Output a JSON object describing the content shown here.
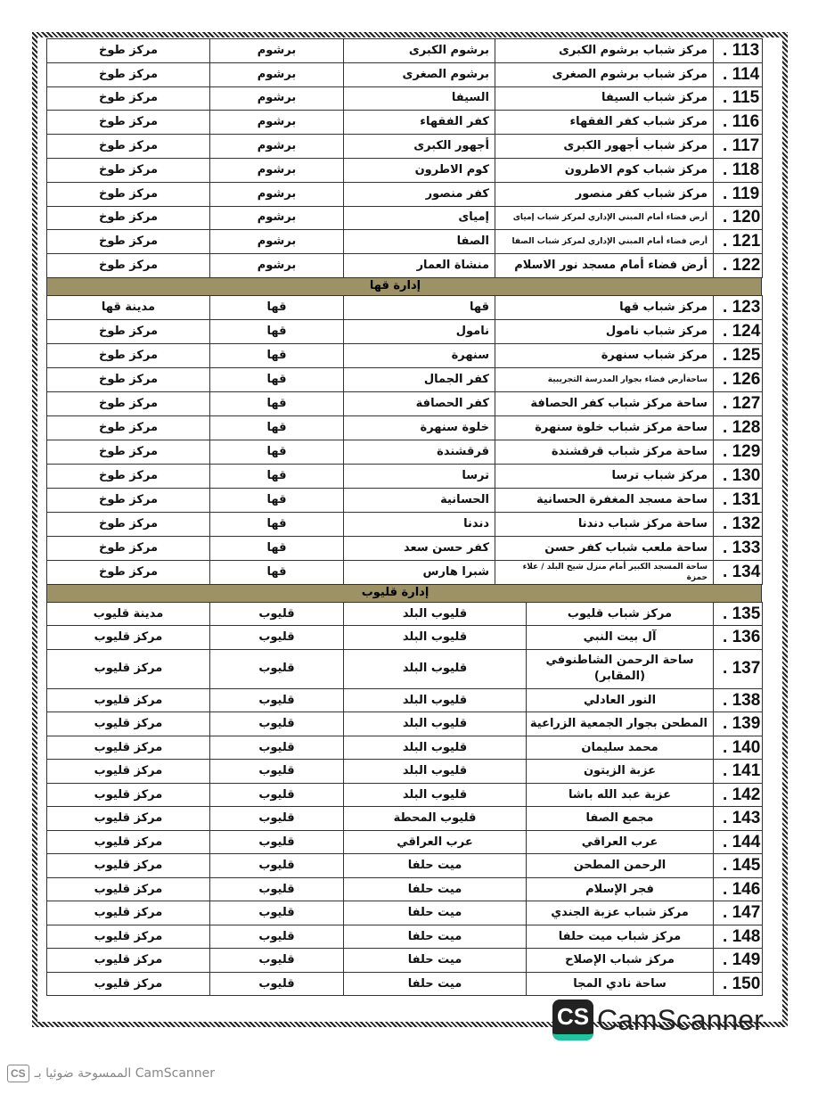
{
  "sections": [
    {
      "header": "",
      "rows": [
        [
          "113",
          "مركز شباب برشوم الكبرى",
          "برشوم الكبرى",
          "برشوم",
          "مركز طوخ"
        ],
        [
          "114",
          "مركز شباب برشوم الصغرى",
          "برشوم الصغرى",
          "برشوم",
          "مركز طوخ"
        ],
        [
          "115",
          "مركز شباب السيفا",
          "السيفا",
          "برشوم",
          "مركز طوخ"
        ],
        [
          "116",
          "مركز شباب كفر الفقهاء",
          "كفر الفقهاء",
          "برشوم",
          "مركز طوخ"
        ],
        [
          "117",
          "مركز شباب أجهور الكبرى",
          "أجهور الكبرى",
          "برشوم",
          "مركز طوخ"
        ],
        [
          "118",
          "مركز شباب كوم الاطرون",
          "كوم الاطرون",
          "برشوم",
          "مركز طوخ"
        ],
        [
          "119",
          "مركز شباب كفر منصور",
          "كفر منصور",
          "برشوم",
          "مركز طوخ"
        ],
        [
          "120",
          "أرض فضاء أمام المبني الإداري لمركز شباب إمياى",
          "إمياى",
          "برشوم",
          "مركز طوخ"
        ],
        [
          "121",
          "أرض فضاء أمام المبني الإداري لمركز شباب الصفا",
          "الصفا",
          "برشوم",
          "مركز طوخ"
        ],
        [
          "122",
          "أرض فضاء أمام مسجد نور الاسلام",
          "منشاة العمار",
          "برشوم",
          "مركز طوخ"
        ]
      ]
    },
    {
      "header": "إدارة قها",
      "rows": [
        [
          "123",
          "مركز شباب قها",
          "قها",
          "قها",
          "مدينة قها"
        ],
        [
          "124",
          "مركز شباب نامول",
          "نامول",
          "قها",
          "مركز طوخ"
        ],
        [
          "125",
          "مركز شباب سنهرة",
          "سنهرة",
          "قها",
          "مركز طوخ"
        ],
        [
          "126",
          "ساحةأرض فضاء بجوار المدرسة التجريبية",
          "كفر الجمال",
          "قها",
          "مركز طوخ"
        ],
        [
          "127",
          "ساحة مركز شباب كفر الحصافة",
          "كفر الحصافة",
          "قها",
          "مركز طوخ"
        ],
        [
          "128",
          "ساحة مركز شباب خلوة سنهرة",
          "خلوة سنهرة",
          "قها",
          "مركز طوخ"
        ],
        [
          "129",
          "ساحة مركز شباب قرقشندة",
          "قرقشندة",
          "قها",
          "مركز طوخ"
        ],
        [
          "130",
          "مركز شباب ترسا",
          "ترسا",
          "قها",
          "مركز طوخ"
        ],
        [
          "131",
          "ساحة مسجد المغفرة الحسانية",
          "الحسانية",
          "قها",
          "مركز طوخ"
        ],
        [
          "132",
          "ساحة مركز شباب دندنا",
          "دندنا",
          "قها",
          "مركز طوخ"
        ],
        [
          "133",
          "ساحة ملعب شباب كفر حسن",
          "كفر حسن سعد",
          "قها",
          "مركز طوخ"
        ],
        [
          "134",
          "ساحة المسجد الكبير أمام منزل شيخ البلد / علاء حمزة",
          "شبرا هارس",
          "قها",
          "مركز طوخ"
        ]
      ]
    },
    {
      "header": "إدارة قليوب",
      "rows": [
        [
          "135",
          "مركز شباب قليوب",
          "قليوب البلد",
          "قليوب",
          "مدينة قليوب"
        ],
        [
          "136",
          "آل بيت النبي",
          "قليوب البلد",
          "قليوب",
          "مركز قليوب"
        ],
        [
          "137",
          "ساحة الرحمن الشاطنوفي (المقابر)",
          "قليوب البلد",
          "قليوب",
          "مركز قليوب"
        ],
        [
          "138",
          "النور العادلي",
          "قليوب البلد",
          "قليوب",
          "مركز قليوب"
        ],
        [
          "139",
          "المطحن بجوار الجمعية الزراعية",
          "قليوب البلد",
          "قليوب",
          "مركز قليوب"
        ],
        [
          "140",
          "محمد سليمان",
          "قليوب البلد",
          "قليوب",
          "مركز قليوب"
        ],
        [
          "141",
          "عزبة الزيتون",
          "قليوب البلد",
          "قليوب",
          "مركز قليوب"
        ],
        [
          "142",
          "عزبة عبد الله باشا",
          "قليوب البلد",
          "قليوب",
          "مركز قليوب"
        ],
        [
          "143",
          "مجمع الصفا",
          "قليوب المحطة",
          "قليوب",
          "مركز قليوب"
        ],
        [
          "144",
          "عرب العراقي",
          "عرب العراقي",
          "قليوب",
          "مركز قليوب"
        ],
        [
          "145",
          "الرحمن المطحن",
          "ميت حلفا",
          "قليوب",
          "مركز قليوب"
        ],
        [
          "146",
          "فجر الإسلام",
          "ميت حلفا",
          "قليوب",
          "مركز قليوب"
        ],
        [
          "147",
          "مركز شباب عزبة الجندي",
          "ميت حلفا",
          "قليوب",
          "مركز قليوب"
        ],
        [
          "148",
          "مركز شباب ميت حلفا",
          "ميت حلفا",
          "قليوب",
          "مركز قليوب"
        ],
        [
          "149",
          "مركز شباب الإصلاح",
          "ميت حلفا",
          "قليوب",
          "مركز قليوب"
        ],
        [
          "150",
          "ساحة نادي المجا",
          "ميت حلفا",
          "قليوب",
          "مركز قليوب"
        ]
      ]
    }
  ],
  "watermark": {
    "logo": "CS",
    "text": "CamScanner"
  },
  "footer": {
    "text": "الممسوحة ضوئيا بـ CamScanner",
    "logo": "CS"
  },
  "colors": {
    "section_header": "#9c9266",
    "watermark_accent": "#1fc39c"
  }
}
